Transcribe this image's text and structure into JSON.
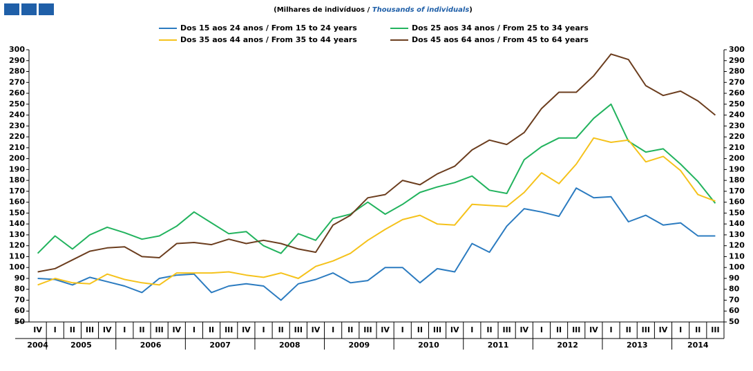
{
  "chart_data": {
    "type": "line",
    "subtitle": {
      "pt": "(Milhares de indivíduos  / ",
      "en": "Thousands of individuals",
      "close": ")"
    },
    "categories": [
      "IV",
      "I",
      "II",
      "III",
      "IV",
      "I",
      "II",
      "III",
      "IV",
      "I",
      "II",
      "III",
      "IV",
      "I",
      "II",
      "III",
      "IV",
      "I",
      "II",
      "III",
      "IV",
      "I",
      "II",
      "III",
      "IV",
      "I",
      "II",
      "III",
      "IV",
      "I",
      "II",
      "III",
      "IV",
      "I",
      "II",
      "III",
      "IV",
      "I",
      "II",
      "III"
    ],
    "x_years": [
      "2004",
      "2005",
      null,
      null,
      null,
      "2006",
      null,
      null,
      null,
      "2007",
      null,
      null,
      null,
      "2008",
      null,
      null,
      null,
      "2009",
      null,
      null,
      null,
      "2010",
      null,
      null,
      null,
      "2011",
      null,
      null,
      null,
      "2012",
      null,
      null,
      null,
      "2013",
      null,
      null,
      null,
      "2014",
      null,
      null
    ],
    "series": [
      {
        "name": "Dos 15 aos 24 anos / From 15 to 24 years",
        "color": "#2b7bc0",
        "values": [
          90,
          89,
          84,
          91,
          87,
          83,
          77,
          90,
          93,
          94,
          77,
          83,
          85,
          83,
          70,
          85,
          89,
          95,
          86,
          88,
          100,
          100,
          86,
          99,
          96,
          122,
          114,
          138,
          154,
          151,
          147,
          173,
          164,
          165,
          142,
          148,
          139,
          141,
          129,
          129
        ]
      },
      {
        "name": "Dos 25 aos 34 anos / From 25 to 34 years",
        "color": "#22b35e",
        "values": [
          113,
          129,
          117,
          130,
          137,
          132,
          126,
          129,
          138,
          151,
          141,
          131,
          133,
          120,
          113,
          131,
          125,
          145,
          149,
          160,
          149,
          158,
          169,
          174,
          178,
          184,
          171,
          168,
          199,
          211,
          219,
          219,
          237,
          250,
          216,
          206,
          209,
          195,
          179,
          159
        ]
      },
      {
        "name": "Dos 35 aos 44 anos / From 35 to 44 years",
        "color": "#f5c21b",
        "values": [
          84,
          90,
          86,
          85,
          94,
          89,
          86,
          84,
          95,
          95,
          95,
          96,
          93,
          91,
          95,
          90,
          101,
          106,
          113,
          125,
          135,
          144,
          148,
          140,
          139,
          158,
          157,
          156,
          169,
          187,
          177,
          195,
          219,
          215,
          217,
          197,
          202,
          189,
          167,
          161
        ]
      },
      {
        "name": "Dos 45 aos 64 anos / From 45 to 64 years",
        "color": "#6b3d1e",
        "values": [
          96,
          99,
          107,
          115,
          118,
          119,
          110,
          109,
          122,
          123,
          121,
          126,
          122,
          125,
          122,
          117,
          114,
          139,
          148,
          164,
          167,
          180,
          176,
          186,
          193,
          208,
          217,
          213,
          224,
          246,
          261,
          261,
          276,
          296,
          291,
          267,
          258,
          262,
          253,
          240
        ]
      }
    ],
    "ylim": [
      50,
      300
    ],
    "yticks": [
      50,
      60,
      70,
      80,
      90,
      100,
      110,
      120,
      130,
      140,
      150,
      160,
      170,
      180,
      190,
      200,
      210,
      220,
      230,
      240,
      250,
      260,
      270,
      280,
      290,
      300
    ],
    "y2lim": [
      50,
      300
    ],
    "y2ticks": [
      50,
      60,
      70,
      80,
      90,
      100,
      110,
      120,
      130,
      140,
      150,
      160,
      170,
      180,
      190,
      200,
      210,
      220,
      230,
      240,
      250,
      260,
      270,
      280,
      290,
      300
    ],
    "grid": false
  }
}
